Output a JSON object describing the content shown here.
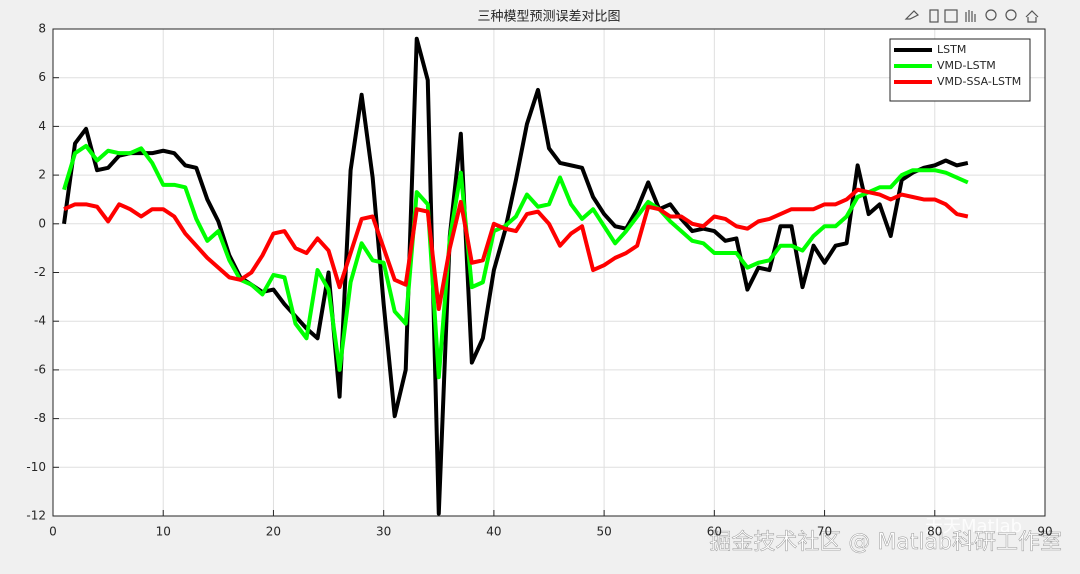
{
  "chart_data": {
    "type": "line",
    "title": "三种模型预测误差对比图",
    "x": [
      1,
      2,
      3,
      4,
      5,
      6,
      7,
      8,
      9,
      10,
      11,
      12,
      13,
      14,
      15,
      16,
      17,
      18,
      19,
      20,
      21,
      22,
      23,
      24,
      25,
      26,
      27,
      28,
      29,
      30,
      31,
      32,
      33,
      34,
      35,
      36,
      37,
      38,
      39,
      40,
      41,
      42,
      43,
      44,
      45,
      46,
      47,
      48,
      49,
      50,
      51,
      52,
      53,
      54,
      55,
      56,
      57,
      58,
      59,
      60,
      61,
      62,
      63,
      64,
      65,
      66,
      67,
      68,
      69,
      70,
      71,
      72,
      73,
      74,
      75,
      76,
      77,
      78,
      79,
      80,
      81,
      82,
      83
    ],
    "series": [
      {
        "name": "LSTM",
        "color": "#000000",
        "values": [
          0,
          3.3,
          3.9,
          2.2,
          2.3,
          2.8,
          2.9,
          2.9,
          2.9,
          3.0,
          2.9,
          2.4,
          2.3,
          1.0,
          0.1,
          -1.3,
          -2.2,
          -2.5,
          -2.8,
          -2.7,
          -3.3,
          -3.8,
          -4.3,
          -4.7,
          -2.0,
          -7.1,
          2.2,
          5.3,
          1.9,
          -3.3,
          -7.9,
          -6.0,
          7.6,
          5.9,
          -11.9,
          -0.5,
          3.7,
          -5.7,
          -4.7,
          -1.9,
          -0.3,
          1.8,
          4.1,
          5.5,
          3.1,
          2.5,
          2.4,
          2.3,
          1.1,
          0.4,
          -0.1,
          -0.2,
          0.6,
          1.7,
          0.6,
          0.8,
          0.2,
          -0.3,
          -0.2,
          -0.3,
          -0.7,
          -0.6,
          -2.7,
          -1.8,
          -1.9,
          -0.1,
          -0.1,
          -2.6,
          -0.9,
          -1.6,
          -0.9,
          -0.8,
          2.4,
          0.4,
          0.8,
          -0.5,
          1.8,
          2.1,
          2.3,
          2.4,
          2.6,
          2.4,
          2.5
        ]
      },
      {
        "name": "VMD-LSTM",
        "color": "#00ff00",
        "values": [
          1.4,
          2.9,
          3.2,
          2.6,
          3.0,
          2.9,
          2.9,
          3.1,
          2.5,
          1.6,
          1.6,
          1.5,
          0.2,
          -0.7,
          -0.3,
          -1.5,
          -2.3,
          -2.5,
          -2.9,
          -2.1,
          -2.2,
          -4.1,
          -4.7,
          -1.9,
          -2.7,
          -6.0,
          -2.4,
          -0.8,
          -1.5,
          -1.6,
          -3.6,
          -4.1,
          1.3,
          0.8,
          -6.3,
          -0.6,
          2.1,
          -2.6,
          -2.4,
          -0.3,
          -0.1,
          0.3,
          1.2,
          0.7,
          0.8,
          1.9,
          0.8,
          0.2,
          0.6,
          -0.1,
          -0.8,
          -0.3,
          0.3,
          0.9,
          0.6,
          0.1,
          -0.3,
          -0.7,
          -0.8,
          -1.2,
          -1.2,
          -1.2,
          -1.8,
          -1.6,
          -1.5,
          -0.9,
          -0.9,
          -1.1,
          -0.5,
          -0.1,
          -0.1,
          0.3,
          1.1,
          1.3,
          1.5,
          1.5,
          2.0,
          2.2,
          2.2,
          2.2,
          2.1,
          1.9,
          1.7
        ]
      },
      {
        "name": "VMD-SSA-LSTM",
        "color": "#ff0000",
        "values": [
          0.6,
          0.8,
          0.8,
          0.7,
          0.1,
          0.8,
          0.6,
          0.3,
          0.6,
          0.6,
          0.3,
          -0.4,
          -0.9,
          -1.4,
          -1.8,
          -2.2,
          -2.3,
          -2.0,
          -1.3,
          -0.4,
          -0.3,
          -1.0,
          -1.2,
          -0.6,
          -1.1,
          -2.6,
          -1.2,
          0.2,
          0.3,
          -1.0,
          -2.3,
          -2.5,
          0.6,
          0.5,
          -3.5,
          -1.0,
          0.9,
          -1.6,
          -1.5,
          0.0,
          -0.2,
          -0.3,
          0.4,
          0.5,
          0.0,
          -0.9,
          -0.4,
          -0.1,
          -1.9,
          -1.7,
          -1.4,
          -1.2,
          -0.9,
          0.7,
          0.6,
          0.3,
          0.3,
          0.0,
          -0.1,
          0.3,
          0.2,
          -0.1,
          -0.2,
          0.1,
          0.2,
          0.4,
          0.6,
          0.6,
          0.6,
          0.8,
          0.8,
          1.0,
          1.4,
          1.3,
          1.2,
          1.0,
          1.2,
          1.1,
          1.0,
          1.0,
          0.8,
          0.4,
          0.3
        ]
      }
    ],
    "xlim": [
      0,
      90
    ],
    "xticks": [
      0,
      10,
      20,
      30,
      40,
      50,
      60,
      70,
      80,
      90
    ],
    "ylim": [
      -12,
      8
    ],
    "yticks": [
      -12,
      -10,
      -8,
      -6,
      -4,
      -2,
      0,
      2,
      4,
      6,
      8
    ],
    "grid": true,
    "legend": "northeast",
    "watermark": "掘金技术社区 @ Matlab科研工作室",
    "watermark2": "天天Matlab"
  }
}
